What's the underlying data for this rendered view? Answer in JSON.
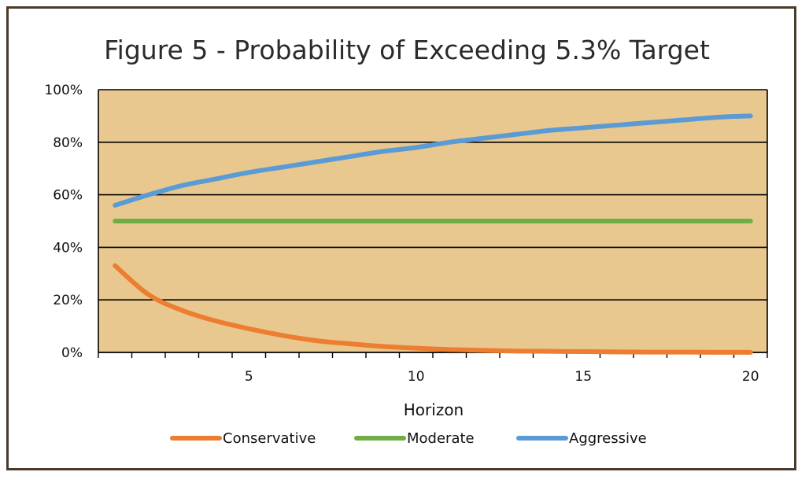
{
  "chart_data": {
    "type": "line",
    "title": "Figure 5 - Probability of Exceeding 5.3% Target",
    "xlabel": "Horizon",
    "ylabel": "",
    "xlim": [
      0.5,
      20.5
    ],
    "ylim": [
      0,
      100
    ],
    "x_ticks": [
      5,
      10,
      15,
      20
    ],
    "y_ticks": [
      0,
      20,
      40,
      60,
      80,
      100
    ],
    "y_tick_labels": [
      "0%",
      "20%",
      "40%",
      "60%",
      "80%",
      "100%"
    ],
    "grid": true,
    "legend_position": "bottom",
    "plot_background": "#E8C88E",
    "x": [
      1,
      2,
      3,
      4,
      5,
      6,
      7,
      8,
      9,
      10,
      11,
      12,
      13,
      14,
      15,
      16,
      17,
      18,
      19,
      20
    ],
    "series": [
      {
        "name": "Conservative",
        "color": "#ED7D31",
        "values": [
          33,
          22,
          16,
          12,
          9,
          6.5,
          4.5,
          3.3,
          2.3,
          1.6,
          1.1,
          0.8,
          0.5,
          0.4,
          0.3,
          0.2,
          0.1,
          0.1,
          0.05,
          0.03
        ]
      },
      {
        "name": "Moderate",
        "color": "#70AD47",
        "values": [
          50,
          50,
          50,
          50,
          50,
          50,
          50,
          50,
          50,
          50,
          50,
          50,
          50,
          50,
          50,
          50,
          50,
          50,
          50,
          50
        ]
      },
      {
        "name": "Aggressive",
        "color": "#5B9BD5",
        "values": [
          56,
          60,
          63.5,
          66,
          68.5,
          70.5,
          72.5,
          74.5,
          76.5,
          78,
          80,
          81.5,
          83,
          84.5,
          85.5,
          86.5,
          87.5,
          88.5,
          89.5,
          90
        ]
      }
    ]
  }
}
